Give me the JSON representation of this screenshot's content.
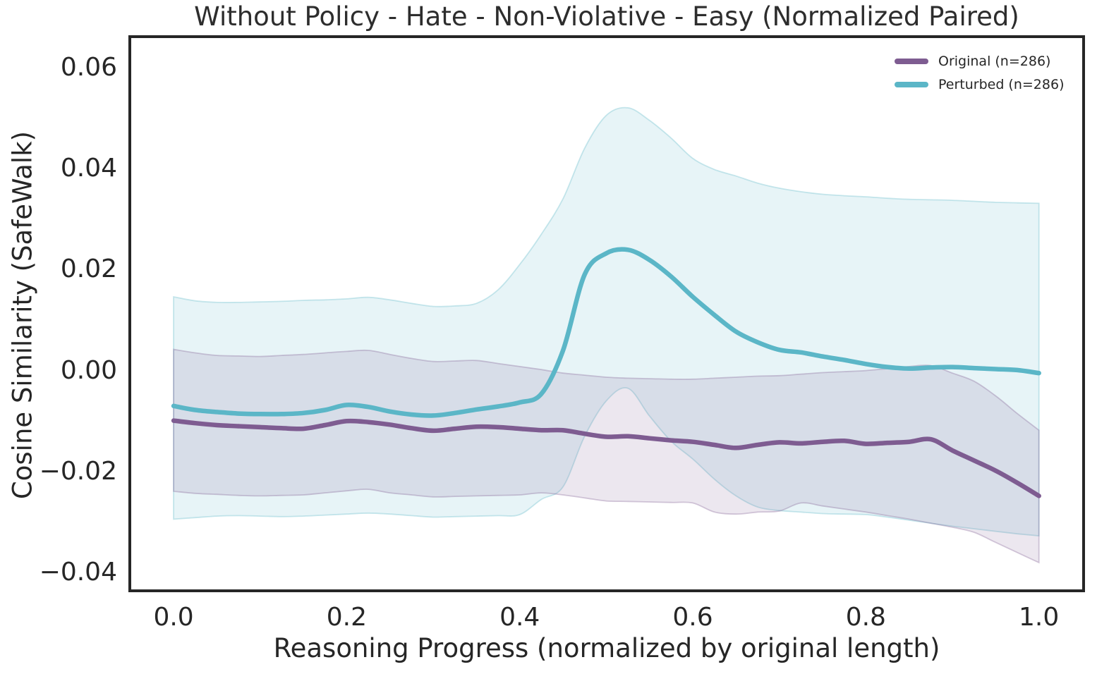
{
  "title": "Without Policy - Hate - Non-Violative - Easy (Normalized Paired)",
  "colors": {
    "original": "#7e5c91",
    "perturbed": "#5bb6c7",
    "text": "#262626",
    "spine": "#262626",
    "background": "#ffffff"
  },
  "axes": {
    "xlabel": "Reasoning Progress (normalized by original length)",
    "ylabel": "Cosine Similarity (SafeWalk)",
    "xtick_labels": [
      "0.0",
      "0.2",
      "0.4",
      "0.6",
      "0.8",
      "1.0"
    ],
    "xtick_values": [
      0.0,
      0.2,
      0.4,
      0.6,
      0.8,
      1.0
    ],
    "ytick_labels": [
      "0.06",
      "0.04",
      "0.02",
      "0.00",
      "−0.02",
      "−0.04"
    ],
    "ytick_values": [
      0.06,
      0.04,
      0.02,
      0.0,
      -0.02,
      -0.04
    ],
    "xlim": [
      -0.049,
      1.05
    ],
    "ylim": [
      -0.0433,
      0.0658
    ],
    "grid": false
  },
  "legend": {
    "position": "upper-right",
    "entries": [
      {
        "label": "Original (n=286)",
        "series": "original"
      },
      {
        "label": "Perturbed (n=286)",
        "series": "perturbed"
      }
    ]
  },
  "chart_data": {
    "type": "line",
    "x": [
      0.0,
      0.025,
      0.05,
      0.075,
      0.1,
      0.125,
      0.15,
      0.175,
      0.2,
      0.225,
      0.25,
      0.275,
      0.3,
      0.325,
      0.35,
      0.375,
      0.4,
      0.425,
      0.45,
      0.475,
      0.5,
      0.525,
      0.55,
      0.575,
      0.6,
      0.625,
      0.65,
      0.675,
      0.7,
      0.725,
      0.75,
      0.775,
      0.8,
      0.825,
      0.85,
      0.875,
      0.9,
      0.925,
      0.95,
      0.975,
      1.0
    ],
    "series": [
      {
        "name": "Original (n=286)",
        "key": "original",
        "color": "#7e5c91",
        "band_alpha": 0.15,
        "values": [
          -0.0099,
          -0.0104,
          -0.0108,
          -0.011,
          -0.0112,
          -0.0114,
          -0.0115,
          -0.0108,
          -0.01,
          -0.0102,
          -0.0107,
          -0.0114,
          -0.0119,
          -0.0115,
          -0.0111,
          -0.0112,
          -0.0115,
          -0.0118,
          -0.0118,
          -0.0125,
          -0.0131,
          -0.013,
          -0.0134,
          -0.0138,
          -0.0141,
          -0.0147,
          -0.0153,
          -0.0147,
          -0.0142,
          -0.0144,
          -0.0141,
          -0.0139,
          -0.0145,
          -0.0143,
          -0.0141,
          -0.0136,
          -0.0158,
          -0.0178,
          -0.0198,
          -0.0222,
          -0.0248
        ],
        "band_upper": [
          0.0042,
          0.0035,
          0.003,
          0.0029,
          0.0028,
          0.003,
          0.0032,
          0.0035,
          0.0038,
          0.004,
          0.0032,
          0.0024,
          0.0018,
          0.0019,
          0.002,
          0.0014,
          0.0008,
          0.0002,
          -0.0005,
          -0.0009,
          -0.0013,
          -0.0015,
          -0.0016,
          -0.0017,
          -0.0017,
          -0.0015,
          -0.0013,
          -0.0011,
          -0.001,
          -0.0007,
          -0.0004,
          -0.0002,
          0.0,
          0.0004,
          0.0008,
          0.001,
          -0.0005,
          -0.0021,
          -0.005,
          -0.0085,
          -0.0118
        ],
        "band_lower": [
          -0.0239,
          -0.0243,
          -0.0245,
          -0.0247,
          -0.0248,
          -0.0247,
          -0.0246,
          -0.0242,
          -0.0238,
          -0.0235,
          -0.0242,
          -0.0246,
          -0.025,
          -0.0249,
          -0.0248,
          -0.0247,
          -0.0246,
          -0.0242,
          -0.0246,
          -0.0252,
          -0.0258,
          -0.0259,
          -0.026,
          -0.0261,
          -0.0262,
          -0.028,
          -0.0284,
          -0.028,
          -0.0278,
          -0.0262,
          -0.0268,
          -0.0274,
          -0.028,
          -0.0287,
          -0.0294,
          -0.0302,
          -0.031,
          -0.032,
          -0.034,
          -0.036,
          -0.038
        ]
      },
      {
        "name": "Perturbed (n=286)",
        "key": "perturbed",
        "color": "#5bb6c7",
        "band_alpha": 0.15,
        "values": [
          -0.007,
          -0.0078,
          -0.0082,
          -0.0085,
          -0.0086,
          -0.0086,
          -0.0084,
          -0.0078,
          -0.0068,
          -0.0072,
          -0.0081,
          -0.0087,
          -0.0089,
          -0.0084,
          -0.0077,
          -0.0071,
          -0.0063,
          -0.0046,
          0.004,
          0.019,
          0.0232,
          0.0239,
          0.0219,
          0.0186,
          0.0146,
          0.011,
          0.0077,
          0.0056,
          0.0041,
          0.0036,
          0.0028,
          0.0021,
          0.0013,
          0.0007,
          0.0004,
          0.0006,
          0.0007,
          0.0005,
          0.0003,
          0.0001,
          -0.0005
        ],
        "band_upper": [
          0.0146,
          0.0138,
          0.0135,
          0.0135,
          0.0136,
          0.0137,
          0.0139,
          0.014,
          0.0142,
          0.0145,
          0.014,
          0.0133,
          0.0127,
          0.0128,
          0.0133,
          0.016,
          0.021,
          0.027,
          0.034,
          0.044,
          0.0505,
          0.052,
          0.0495,
          0.046,
          0.042,
          0.0398,
          0.0385,
          0.0371,
          0.0361,
          0.0354,
          0.0349,
          0.0346,
          0.0344,
          0.0341,
          0.0339,
          0.0338,
          0.0337,
          0.0335,
          0.0333,
          0.0332,
          0.0331
        ],
        "band_lower": [
          -0.0294,
          -0.0291,
          -0.0288,
          -0.0287,
          -0.0288,
          -0.0289,
          -0.0288,
          -0.0286,
          -0.0284,
          -0.0282,
          -0.0284,
          -0.0287,
          -0.029,
          -0.0289,
          -0.0288,
          -0.0287,
          -0.0285,
          -0.0255,
          -0.023,
          -0.013,
          -0.006,
          -0.0035,
          -0.009,
          -0.014,
          -0.0175,
          -0.0215,
          -0.0248,
          -0.027,
          -0.0277,
          -0.028,
          -0.0283,
          -0.0284,
          -0.0285,
          -0.029,
          -0.0296,
          -0.0302,
          -0.0308,
          -0.0313,
          -0.0318,
          -0.0323,
          -0.0327
        ]
      }
    ]
  }
}
